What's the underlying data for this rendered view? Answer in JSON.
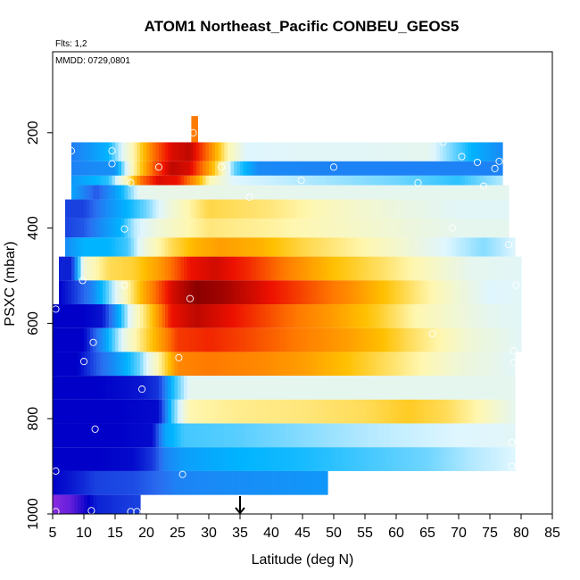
{
  "chart_data": {
    "type": "heatmap",
    "title": "ATOM1 Northeast_Pacific CONBEU_GEOS5",
    "flights_note": "Flts: 1,2",
    "date_note": "MMDD: 0729,0801",
    "xlabel": "Latitude (deg N)",
    "ylabel": "PSXC (mbar)",
    "xlim": [
      5,
      85
    ],
    "ylim": [
      1000,
      30
    ],
    "y_reversed": true,
    "x_ticks": [
      5,
      10,
      15,
      20,
      25,
      30,
      35,
      40,
      45,
      50,
      55,
      60,
      65,
      70,
      75,
      80,
      85
    ],
    "y_ticks": [
      200,
      400,
      600,
      800,
      1000
    ],
    "arrow_latitude": 35,
    "color_scale": [
      "#8a2be2",
      "#0000c8",
      "#2a6df0",
      "#00b4ff",
      "#dff6ff",
      "#fff7b0",
      "#ffc000",
      "#ff7a00",
      "#ee1000",
      "#8b0000"
    ],
    "layers": [
      {
        "p_top": 165,
        "p_bot": 220,
        "x0": 27.2,
        "x1": 28.2,
        "anchors": [
          [
            27.2,
            7
          ],
          [
            28.2,
            7
          ]
        ]
      },
      {
        "p_top": 220,
        "p_bot": 260,
        "x0": 8,
        "x1": 77,
        "anchors": [
          [
            8,
            2.2
          ],
          [
            14,
            3
          ],
          [
            18,
            5
          ],
          [
            21,
            7
          ],
          [
            24,
            8.2
          ],
          [
            27,
            8.5
          ],
          [
            30,
            7
          ],
          [
            33,
            5
          ],
          [
            36,
            4
          ],
          [
            45,
            4.1
          ],
          [
            55,
            4.1
          ],
          [
            65,
            4.2
          ],
          [
            72,
            3
          ],
          [
            77,
            2.4
          ]
        ]
      },
      {
        "p_top": 260,
        "p_bot": 290,
        "x0": 8,
        "x1": 77,
        "anchors": [
          [
            8,
            2.3
          ],
          [
            15,
            2.5
          ],
          [
            18,
            5
          ],
          [
            21,
            7.2
          ],
          [
            24,
            8.5
          ],
          [
            27,
            8.2
          ],
          [
            30,
            6.5
          ],
          [
            32,
            5
          ],
          [
            34,
            3.5
          ],
          [
            38,
            2.4
          ],
          [
            50,
            2.3
          ],
          [
            60,
            2.3
          ],
          [
            70,
            2.3
          ],
          [
            77,
            2.3
          ]
        ]
      },
      {
        "p_top": 290,
        "p_bot": 310,
        "x0": 8,
        "x1": 77,
        "anchors": [
          [
            8,
            2.6
          ],
          [
            14,
            3.2
          ],
          [
            17,
            5
          ],
          [
            19,
            7
          ],
          [
            22,
            8.2
          ],
          [
            25,
            8
          ],
          [
            28,
            6.5
          ],
          [
            30,
            5
          ],
          [
            34,
            4
          ],
          [
            45,
            3.8
          ],
          [
            60,
            3.5
          ],
          [
            70,
            3.2
          ],
          [
            77,
            3.8
          ]
        ]
      },
      {
        "p_top": 310,
        "p_bot": 340,
        "x0": 8,
        "x1": 78,
        "anchors": [
          [
            8,
            2.8
          ],
          [
            12,
            1.8
          ],
          [
            16,
            3
          ],
          [
            19,
            4.2
          ],
          [
            23,
            4.3
          ],
          [
            30,
            4.3
          ],
          [
            45,
            4.2
          ],
          [
            60,
            4.2
          ],
          [
            70,
            4.2
          ],
          [
            78,
            4.2
          ]
        ]
      },
      {
        "p_top": 340,
        "p_bot": 380,
        "x0": 7,
        "x1": 78,
        "anchors": [
          [
            7,
            1.6
          ],
          [
            10,
            1.6
          ],
          [
            14,
            2.5
          ],
          [
            17,
            3
          ],
          [
            20,
            3.5
          ],
          [
            24,
            4.5
          ],
          [
            30,
            5.6
          ],
          [
            40,
            5.3
          ],
          [
            50,
            4.8
          ],
          [
            60,
            4.4
          ],
          [
            70,
            4.1
          ],
          [
            78,
            4.1
          ]
        ]
      },
      {
        "p_top": 380,
        "p_bot": 420,
        "x0": 7,
        "x1": 78,
        "anchors": [
          [
            7,
            1.6
          ],
          [
            10,
            1.8
          ],
          [
            13,
            2.5
          ],
          [
            16,
            3
          ],
          [
            18,
            3.8
          ],
          [
            22,
            4.5
          ],
          [
            30,
            5.3
          ],
          [
            40,
            5.1
          ],
          [
            50,
            4.8
          ],
          [
            60,
            4.5
          ],
          [
            70,
            4.2
          ],
          [
            78,
            4.2
          ]
        ]
      },
      {
        "p_top": 420,
        "p_bot": 460,
        "x0": 7,
        "x1": 79,
        "anchors": [
          [
            7,
            2.4
          ],
          [
            10,
            3
          ],
          [
            14,
            3
          ],
          [
            17,
            3.3
          ],
          [
            20,
            4.5
          ],
          [
            24,
            5.5
          ],
          [
            28,
            6.2
          ],
          [
            32,
            6.5
          ],
          [
            38,
            6.2
          ],
          [
            45,
            5.6
          ],
          [
            55,
            5
          ],
          [
            62,
            4.5
          ],
          [
            68,
            4
          ],
          [
            74,
            3.6
          ],
          [
            79,
            4
          ]
        ]
      },
      {
        "p_top": 460,
        "p_bot": 510,
        "x0": 6,
        "x1": 80,
        "anchors": [
          [
            6,
            1.3
          ],
          [
            8,
            1.3
          ],
          [
            10,
            4.5
          ],
          [
            14,
            5.5
          ],
          [
            18,
            5.7
          ],
          [
            22,
            6.5
          ],
          [
            27,
            8
          ],
          [
            31,
            8.3
          ],
          [
            36,
            7.8
          ],
          [
            42,
            7
          ],
          [
            50,
            6
          ],
          [
            58,
            5.4
          ],
          [
            65,
            4.8
          ],
          [
            72,
            4.2
          ],
          [
            80,
            4.1
          ]
        ]
      },
      {
        "p_top": 510,
        "p_bot": 560,
        "x0": 6,
        "x1": 80,
        "anchors": [
          [
            6,
            1
          ],
          [
            8,
            1.4
          ],
          [
            11,
            2.2
          ],
          [
            14,
            3.5
          ],
          [
            17,
            5
          ],
          [
            20,
            6.5
          ],
          [
            24,
            8.2
          ],
          [
            28,
            9
          ],
          [
            32,
            8.8
          ],
          [
            38,
            8.2
          ],
          [
            45,
            7.5
          ],
          [
            52,
            6.8
          ],
          [
            58,
            6
          ],
          [
            64,
            5.2
          ],
          [
            70,
            4.5
          ],
          [
            75,
            4
          ],
          [
            80,
            4.1
          ]
        ]
      },
      {
        "p_top": 560,
        "p_bot": 610,
        "x0": 5,
        "x1": 80,
        "anchors": [
          [
            5,
            1
          ],
          [
            10,
            1
          ],
          [
            13,
            1.2
          ],
          [
            15,
            2.5
          ],
          [
            18,
            4.5
          ],
          [
            21,
            6
          ],
          [
            24,
            8
          ],
          [
            28,
            8.5
          ],
          [
            34,
            8
          ],
          [
            42,
            7.2
          ],
          [
            50,
            6.5
          ],
          [
            57,
            5.8
          ],
          [
            63,
            5
          ],
          [
            70,
            4.5
          ],
          [
            75,
            4.2
          ],
          [
            80,
            4.1
          ]
        ]
      },
      {
        "p_top": 610,
        "p_bot": 660,
        "x0": 5,
        "x1": 80,
        "anchors": [
          [
            5,
            1
          ],
          [
            10,
            1
          ],
          [
            12,
            2
          ],
          [
            14,
            3
          ],
          [
            17,
            4.5
          ],
          [
            21,
            6
          ],
          [
            25,
            7.6
          ],
          [
            30,
            7.8
          ],
          [
            36,
            7.5
          ],
          [
            44,
            7
          ],
          [
            52,
            6.5
          ],
          [
            58,
            6
          ],
          [
            62,
            5.5
          ],
          [
            67,
            5
          ],
          [
            72,
            4.5
          ],
          [
            80,
            4.1
          ]
        ]
      },
      {
        "p_top": 660,
        "p_bot": 710,
        "x0": 5,
        "x1": 79,
        "anchors": [
          [
            5,
            1
          ],
          [
            9,
            1
          ],
          [
            12,
            1.8
          ],
          [
            15,
            2.5
          ],
          [
            19,
            3.5
          ],
          [
            22,
            5
          ],
          [
            25,
            6.8
          ],
          [
            30,
            7
          ],
          [
            38,
            6.8
          ],
          [
            45,
            6.5
          ],
          [
            52,
            6
          ],
          [
            58,
            5.5
          ],
          [
            64,
            5
          ],
          [
            70,
            4.5
          ],
          [
            79,
            4.1
          ]
        ]
      },
      {
        "p_top": 710,
        "p_bot": 760,
        "x0": 5,
        "x1": 79,
        "anchors": [
          [
            5,
            1
          ],
          [
            12,
            1
          ],
          [
            16,
            1.1
          ],
          [
            19,
            1.2
          ],
          [
            22,
            1.5
          ],
          [
            24,
            3
          ],
          [
            27,
            4.2
          ],
          [
            35,
            4.2
          ],
          [
            50,
            4.2
          ],
          [
            65,
            4.2
          ],
          [
            79,
            4.2
          ]
        ]
      },
      {
        "p_top": 760,
        "p_bot": 810,
        "x0": 5,
        "x1": 79,
        "anchors": [
          [
            5,
            1
          ],
          [
            15,
            1
          ],
          [
            22,
            1.1
          ],
          [
            24,
            3.2
          ],
          [
            27,
            5
          ],
          [
            35,
            5.2
          ],
          [
            45,
            5.3
          ],
          [
            55,
            5.5
          ],
          [
            62,
            5.8
          ],
          [
            68,
            5.5
          ],
          [
            73,
            5
          ],
          [
            79,
            4.2
          ]
        ]
      },
      {
        "p_top": 810,
        "p_bot": 860,
        "x0": 5,
        "x1": 79,
        "anchors": [
          [
            5,
            1
          ],
          [
            15,
            1
          ],
          [
            21,
            1.1
          ],
          [
            23,
            2.8
          ],
          [
            26,
            3.3
          ],
          [
            35,
            3.4
          ],
          [
            45,
            3.6
          ],
          [
            55,
            3.8
          ],
          [
            62,
            3.9
          ],
          [
            70,
            4
          ],
          [
            79,
            4.1
          ]
        ]
      },
      {
        "p_top": 860,
        "p_bot": 910,
        "x0": 5,
        "x1": 79,
        "anchors": [
          [
            5,
            1
          ],
          [
            12,
            1
          ],
          [
            18,
            1.1
          ],
          [
            21,
            1.5
          ],
          [
            23,
            2.3
          ],
          [
            26,
            2.7
          ],
          [
            35,
            3
          ],
          [
            45,
            3.1
          ],
          [
            55,
            3.3
          ],
          [
            65,
            3.5
          ],
          [
            72,
            3.8
          ],
          [
            79,
            4
          ]
        ]
      },
      {
        "p_top": 910,
        "p_bot": 960,
        "x0": 5,
        "x1": 49,
        "anchors": [
          [
            5,
            1
          ],
          [
            9,
            1.3
          ],
          [
            12,
            1.6
          ],
          [
            18,
            1.7
          ],
          [
            22,
            2
          ],
          [
            25,
            2.3
          ],
          [
            30,
            2.4
          ],
          [
            40,
            2.5
          ],
          [
            49,
            2.6
          ]
        ]
      },
      {
        "p_top": 960,
        "p_bot": 1000,
        "x0": 5,
        "x1": 19,
        "anchors": [
          [
            5,
            0
          ],
          [
            8,
            0.3
          ],
          [
            12,
            1.3
          ],
          [
            16,
            1.5
          ],
          [
            19,
            1.6
          ]
        ]
      }
    ],
    "points": [
      [
        27.5,
        200
      ],
      [
        8,
        238
      ],
      [
        14.5,
        238
      ],
      [
        14.5,
        265
      ],
      [
        67.5,
        220
      ],
      [
        70.5,
        250
      ],
      [
        73,
        262
      ],
      [
        76.5,
        260
      ],
      [
        22,
        272
      ],
      [
        32,
        272
      ],
      [
        50,
        272
      ],
      [
        75.8,
        275
      ],
      [
        17.5,
        305
      ],
      [
        44.8,
        300
      ],
      [
        63.5,
        305
      ],
      [
        74,
        312
      ],
      [
        36.5,
        335
      ],
      [
        16.5,
        402
      ],
      [
        69,
        400
      ],
      [
        78,
        435
      ],
      [
        9.8,
        510
      ],
      [
        16.5,
        520
      ],
      [
        79.2,
        520
      ],
      [
        27,
        548
      ],
      [
        5.5,
        570
      ],
      [
        65.8,
        622
      ],
      [
        11.5,
        640
      ],
      [
        25.2,
        672
      ],
      [
        10,
        680
      ],
      [
        78.8,
        658
      ],
      [
        78.8,
        682
      ],
      [
        19.3,
        738
      ],
      [
        11.8,
        822
      ],
      [
        78.5,
        850
      ],
      [
        5.5,
        910
      ],
      [
        25.8,
        917
      ],
      [
        78.5,
        900
      ],
      [
        5.5,
        995
      ],
      [
        11.2,
        993
      ],
      [
        17.5,
        995
      ],
      [
        18.5,
        995
      ]
    ]
  }
}
